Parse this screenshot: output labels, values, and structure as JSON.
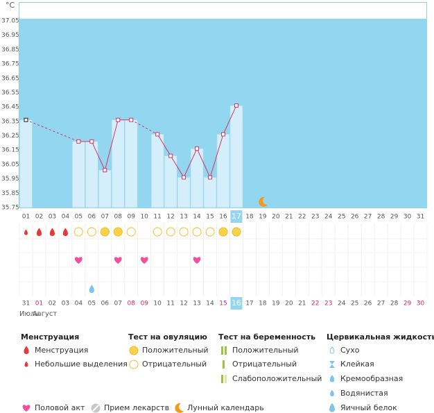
{
  "chart_data": {
    "type": "line",
    "y_label": "°C",
    "categories": [
      "01",
      "02",
      "03",
      "04",
      "05",
      "06",
      "07",
      "08",
      "09",
      "10",
      "11",
      "12",
      "13",
      "14",
      "15",
      "16",
      "17",
      "18",
      "19",
      "20",
      "21",
      "22",
      "23",
      "24",
      "25",
      "26",
      "27",
      "28",
      "29",
      "30",
      "31"
    ],
    "values": [
      36.36,
      null,
      null,
      null,
      36.21,
      36.21,
      36.01,
      36.36,
      36.36,
      null,
      36.26,
      36.11,
      35.96,
      36.16,
      35.96,
      36.26,
      36.46,
      null,
      null,
      null,
      null,
      null,
      null,
      null,
      null,
      null,
      null,
      null,
      null,
      null,
      null
    ],
    "ylim": [
      35.75,
      37.05
    ],
    "yticks": [
      35.75,
      35.85,
      35.95,
      36.05,
      36.15,
      36.25,
      36.35,
      36.45,
      36.55,
      36.65,
      36.75,
      36.85,
      36.95,
      37.05
    ],
    "line_color": "#d8325f",
    "bar_color": "#d4effb",
    "background_color": "#93d6f0",
    "current_day_index": 16,
    "moon_index": 18,
    "menstruation": [
      "light",
      "heavy",
      "heavy",
      "heavy",
      null,
      null,
      null,
      null,
      null,
      null,
      null,
      null,
      null,
      null,
      null,
      null,
      null,
      null,
      null,
      null,
      null,
      null,
      null,
      null,
      null,
      null,
      null,
      null,
      null,
      null,
      null
    ],
    "ovulation_test": [
      null,
      null,
      null,
      null,
      "negative",
      "negative",
      "positive",
      "positive",
      "negative",
      null,
      "negative",
      "negative",
      "negative",
      "negative",
      "negative",
      "positive",
      "positive",
      null,
      null,
      null,
      null,
      null,
      null,
      null,
      null,
      null,
      null,
      null,
      null,
      null,
      null
    ],
    "intercourse": [
      null,
      null,
      null,
      null,
      true,
      null,
      null,
      true,
      null,
      true,
      null,
      null,
      null,
      true,
      null,
      null,
      null,
      null,
      null,
      null,
      null,
      null,
      null,
      null,
      null,
      null,
      null,
      null,
      null,
      null,
      null
    ],
    "cervical_fluid": [
      null,
      null,
      null,
      null,
      null,
      "egg_white",
      null,
      null,
      null,
      null,
      null,
      null,
      null,
      null,
      null,
      null,
      null,
      null,
      null,
      null,
      null,
      null,
      null,
      null,
      null,
      null,
      null,
      null,
      null,
      null,
      null
    ],
    "dates": [
      "31",
      "01",
      "02",
      "03",
      "04",
      "05",
      "06",
      "07",
      "08",
      "09",
      "10",
      "11",
      "12",
      "13",
      "14",
      "15",
      "16",
      "17",
      "18",
      "19",
      "20",
      "21",
      "22",
      "23",
      "24",
      "25",
      "26",
      "27",
      "28",
      "29",
      "30"
    ],
    "weekend_dates": [
      1,
      8,
      9,
      15,
      22,
      23,
      29,
      30
    ],
    "today_date_index": 16,
    "months": [
      {
        "index": 0,
        "label": "Июль"
      },
      {
        "index": 1,
        "label": "Август"
      }
    ]
  },
  "legend": {
    "groups": [
      {
        "title": "Менструация",
        "items": [
          "Менструация",
          "Небольшие выделения"
        ]
      },
      {
        "title": "Тест на овуляцию",
        "items": [
          "Положительный",
          "Отрицательный"
        ]
      },
      {
        "title": "Тест на беременность",
        "items": [
          "Положительный",
          "Отрицательный",
          "Слабоположительный"
        ]
      },
      {
        "title": "Цервикальная жидкость",
        "items": [
          "Сухо",
          "Клейкая",
          "Кремообразная",
          "Водянистая",
          "Яичный белок"
        ]
      }
    ],
    "extra": [
      "Половой акт",
      "Прием лекарств",
      "Лунный календарь"
    ]
  }
}
